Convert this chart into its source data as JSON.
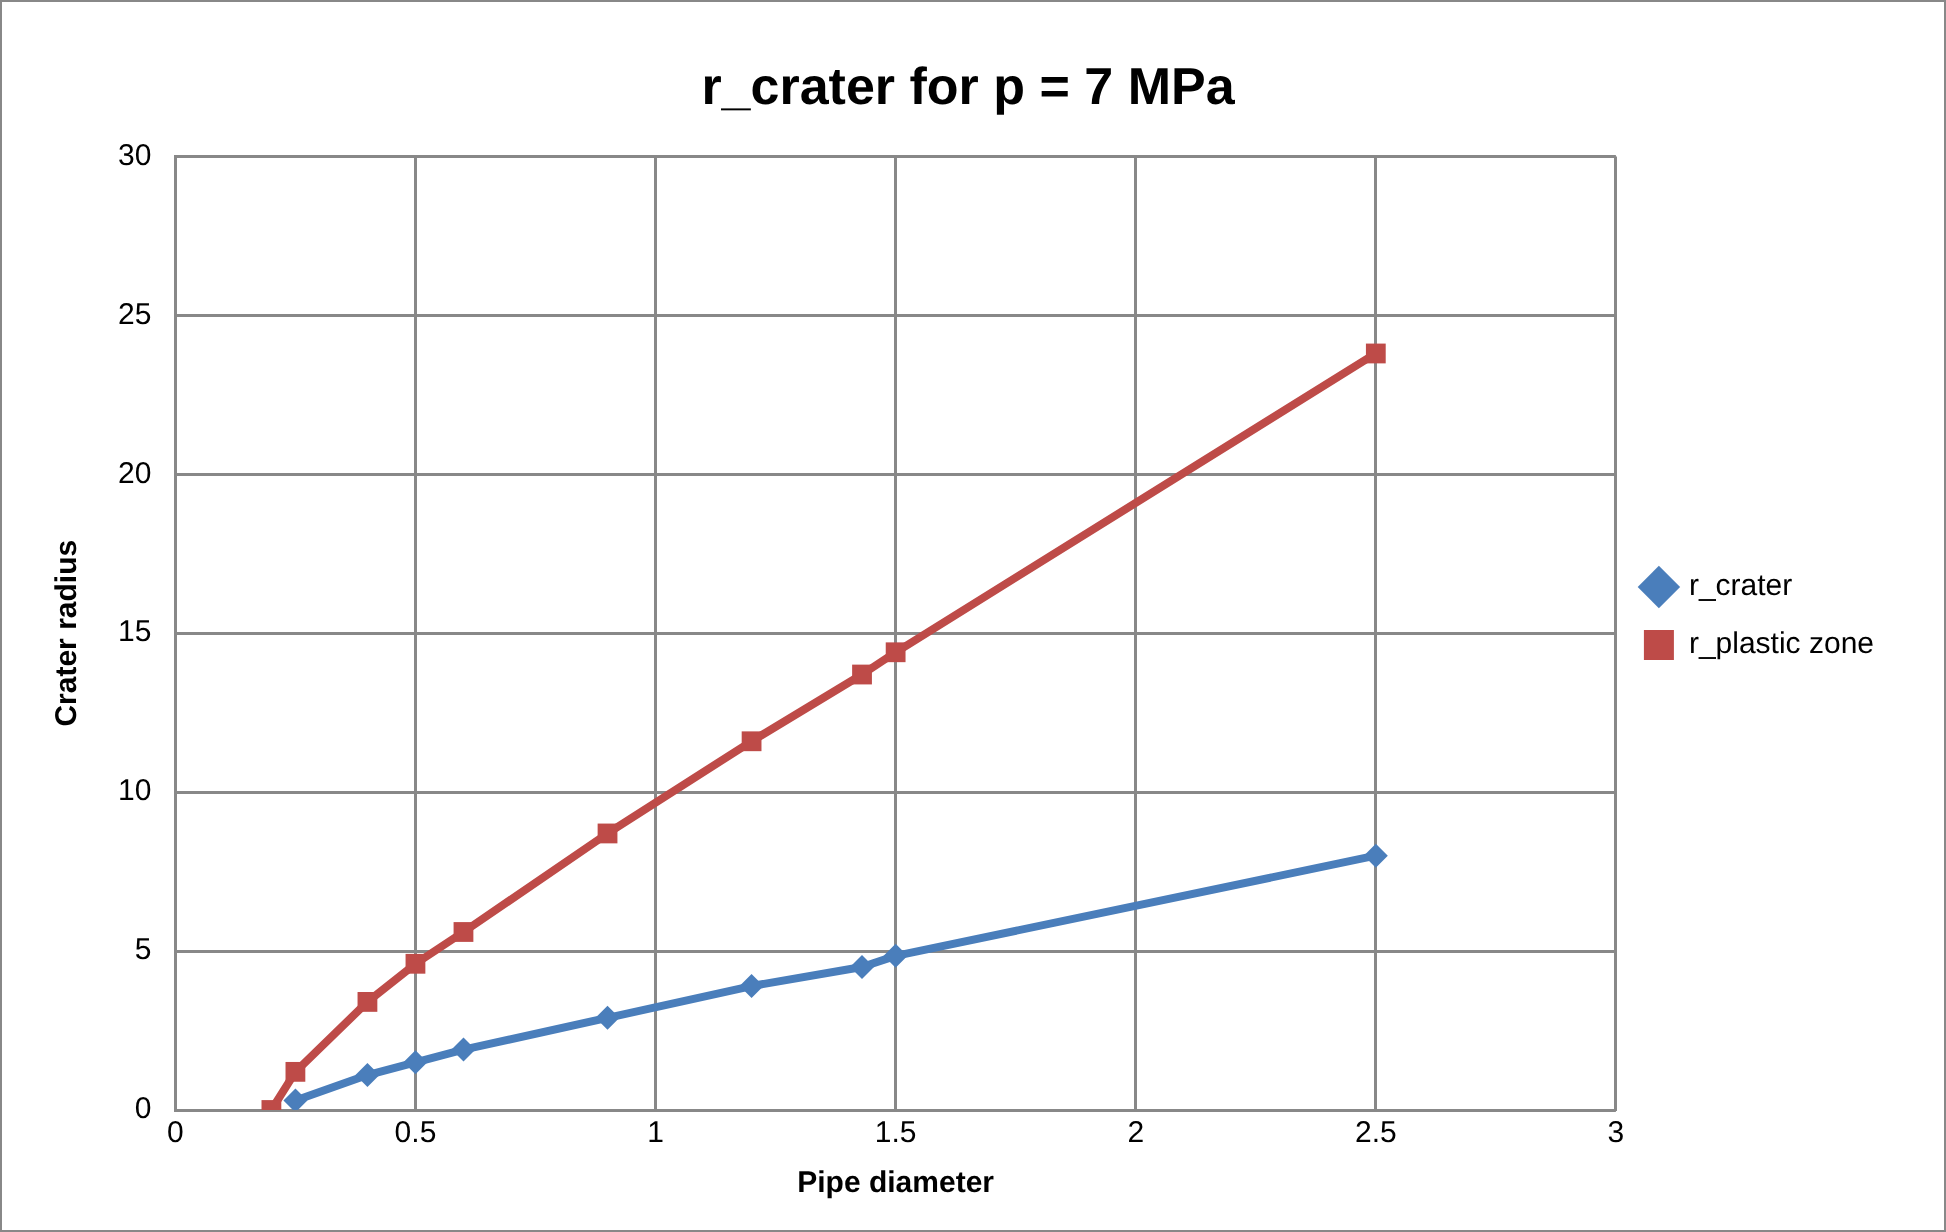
{
  "chart_data": {
    "type": "line",
    "title": "r_crater for p = 7 MPa",
    "xlabel": "Pipe diameter",
    "ylabel": "Crater radius",
    "xlim": [
      0,
      3
    ],
    "xticks": [
      0,
      0.5,
      1,
      1.5,
      2,
      2.5,
      3
    ],
    "ylim": [
      0,
      30
    ],
    "yticks": [
      0,
      5,
      10,
      15,
      20,
      25,
      30
    ],
    "grid": true,
    "legend": "right",
    "series": [
      {
        "name": "r_crater",
        "color": "#4a7ebb",
        "marker": "diamond",
        "x": [
          0.25,
          0.4,
          0.5,
          0.6,
          0.9,
          1.2,
          1.43,
          1.5,
          2.5
        ],
        "values": [
          0.3,
          1.1,
          1.5,
          1.9,
          2.9,
          3.9,
          4.5,
          4.85,
          8.0
        ]
      },
      {
        "name": "r_plastic zone",
        "color": "#be4b48",
        "marker": "square",
        "x": [
          0.2,
          0.25,
          0.4,
          0.5,
          0.6,
          0.9,
          1.2,
          1.43,
          1.5,
          2.5
        ],
        "values": [
          0,
          1.2,
          3.4,
          4.6,
          5.6,
          8.7,
          11.6,
          13.7,
          14.4,
          23.8
        ]
      }
    ]
  }
}
